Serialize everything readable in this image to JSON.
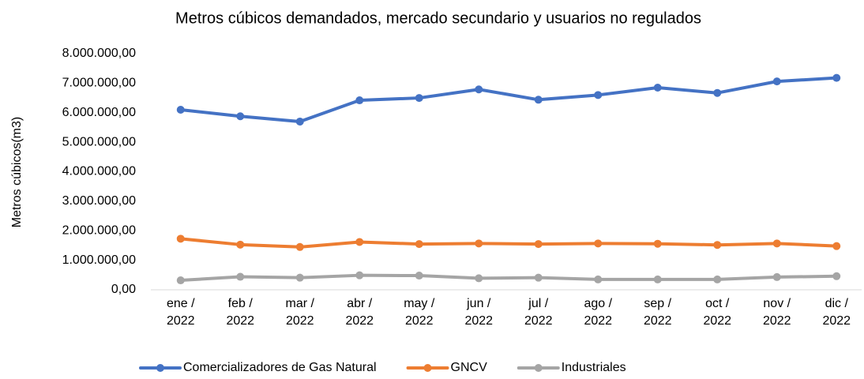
{
  "chart_data": {
    "type": "line",
    "title": "Metros cúbicos demandados, mercado secundario y usuarios no regulados",
    "y_label": "Metros cúbicos(m3)",
    "categories": [
      "ene / 2022",
      "feb / 2022",
      "mar / 2022",
      "abr / 2022",
      "may / 2022",
      "jun / 2022",
      "jul / 2022",
      "ago / 2022",
      "sep / 2022",
      "oct / 2022",
      "nov / 2022",
      "dic / 2022"
    ],
    "series": [
      {
        "name": "Comercializadores de Gas Natural",
        "color": "#4472c4",
        "values": [
          6100000,
          5880000,
          5700000,
          6420000,
          6500000,
          6790000,
          6440000,
          6600000,
          6850000,
          6670000,
          7060000,
          7180000
        ]
      },
      {
        "name": "GNCV",
        "color": "#ed7d31",
        "values": [
          1730000,
          1530000,
          1450000,
          1620000,
          1550000,
          1570000,
          1550000,
          1570000,
          1560000,
          1520000,
          1570000,
          1480000
        ]
      },
      {
        "name": "Industriales",
        "color": "#a5a5a5",
        "values": [
          320000,
          440000,
          410000,
          490000,
          480000,
          390000,
          410000,
          350000,
          350000,
          350000,
          430000,
          460000
        ]
      }
    ],
    "ylim": [
      0,
      8000000
    ],
    "yticks": [
      {
        "value": 0,
        "label": "0,00"
      },
      {
        "value": 1000000,
        "label": "1.000.000,00"
      },
      {
        "value": 2000000,
        "label": "2.000.000,00"
      },
      {
        "value": 3000000,
        "label": "3.000.000,00"
      },
      {
        "value": 4000000,
        "label": "4.000.000,00"
      },
      {
        "value": 5000000,
        "label": "5.000.000,00"
      },
      {
        "value": 6000000,
        "label": "6.000.000,00"
      },
      {
        "value": 7000000,
        "label": "7.000.000,00"
      },
      {
        "value": 8000000,
        "label": "8.000.000,00"
      }
    ],
    "grid": false,
    "legend": "bottom"
  }
}
